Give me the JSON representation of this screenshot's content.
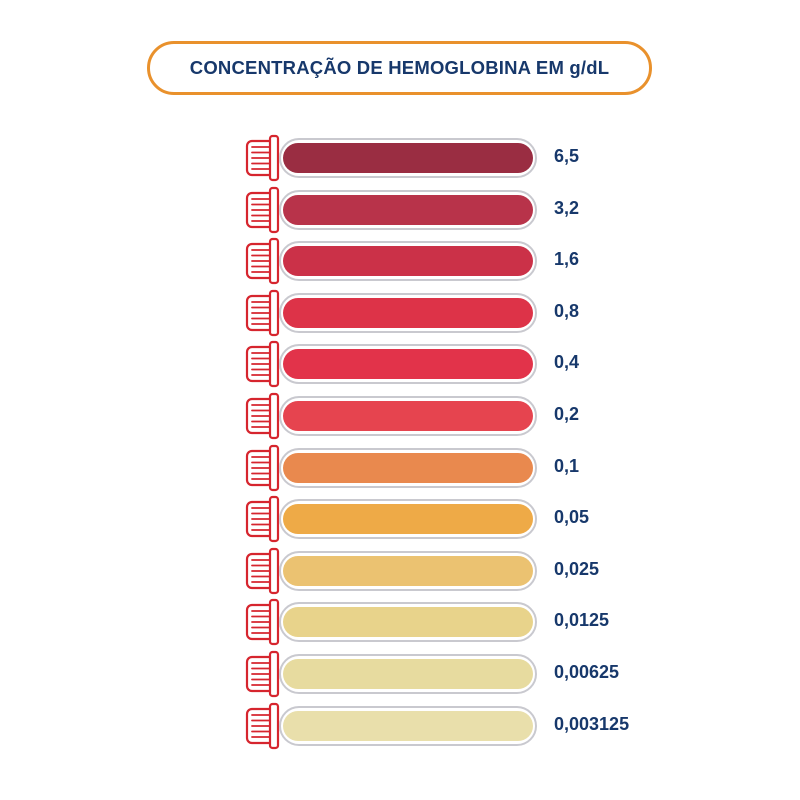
{
  "title": "CONCENTRAÇÃO DE HEMOGLOBINA EM g/dL",
  "colors": {
    "title_border": "#e9912c",
    "title_text": "#17386b",
    "value_text": "#17386b",
    "cap_stroke": "#d6252e",
    "tube_outline": "#c9c9cf"
  },
  "tubes": [
    {
      "value": "6,5",
      "color": "#9a2d42"
    },
    {
      "value": "3,2",
      "color": "#b8334a"
    },
    {
      "value": "1,6",
      "color": "#cb3148"
    },
    {
      "value": "0,8",
      "color": "#dd3348"
    },
    {
      "value": "0,4",
      "color": "#e2334a"
    },
    {
      "value": "0,2",
      "color": "#e6444f"
    },
    {
      "value": "0,1",
      "color": "#e9894e"
    },
    {
      "value": "0,05",
      "color": "#eeaa47"
    },
    {
      "value": "0,025",
      "color": "#ebc271"
    },
    {
      "value": "0,0125",
      "color": "#e8d38b"
    },
    {
      "value": "0,00625",
      "color": "#e7db9f"
    },
    {
      "value": "0,003125",
      "color": "#e9dfab"
    }
  ]
}
